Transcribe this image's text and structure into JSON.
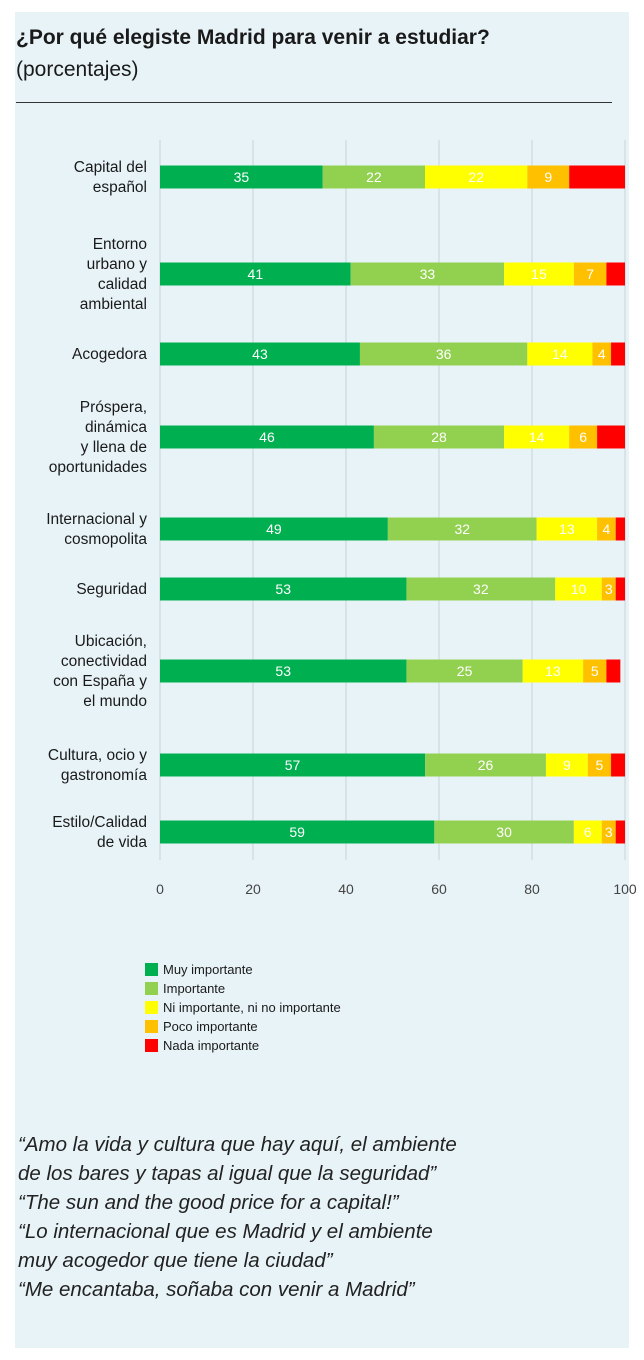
{
  "header": {
    "title": "¿Por qué elegiste Madrid para venir a estudiar?",
    "subtitle": "(porcentajes)"
  },
  "chart_data": {
    "type": "bar",
    "orientation": "horizontal",
    "stacked": true,
    "categories": [
      [
        "Capital del",
        "español"
      ],
      [
        "Entorno",
        "urbano y",
        "calidad",
        "ambiental"
      ],
      [
        "Acogedora"
      ],
      [
        "Próspera,",
        "dinámica",
        "y llena de",
        "oportunidades"
      ],
      [
        "Internacional y",
        "cosmopolita"
      ],
      [
        "Seguridad"
      ],
      [
        "Ubicación,",
        "conectividad",
        "con España y",
        "el mundo"
      ],
      [
        "Cultura, ocio y",
        "gastronomía"
      ],
      [
        "Estilo/Calidad",
        "de vida"
      ]
    ],
    "series": [
      {
        "name": "Muy importante",
        "color": "#00b050",
        "label_color": "#ffffff",
        "values": [
          35,
          41,
          43,
          46,
          49,
          53,
          53,
          57,
          59
        ]
      },
      {
        "name": "Importante",
        "color": "#92d050",
        "label_color": "#ffffff",
        "values": [
          22,
          33,
          36,
          28,
          32,
          32,
          25,
          26,
          30
        ]
      },
      {
        "name": "Ni importante, ni no importante",
        "color": "#ffff00",
        "label_color": "#ffffff",
        "values": [
          22,
          15,
          14,
          14,
          13,
          10,
          13,
          9,
          6
        ]
      },
      {
        "name": "Poco importante",
        "color": "#ffc000",
        "label_color": "#ffffff",
        "values": [
          9,
          7,
          4,
          6,
          4,
          3,
          5,
          5,
          3
        ]
      },
      {
        "name": "Nada importante",
        "color": "#ff0000",
        "label_color": "#ffffff",
        "values": [
          13,
          5,
          3,
          6,
          2,
          2,
          3,
          4,
          2
        ]
      }
    ],
    "shown_labels": [
      [
        true,
        true,
        true,
        true,
        false
      ],
      [
        true,
        true,
        true,
        true,
        false
      ],
      [
        true,
        true,
        true,
        true,
        false
      ],
      [
        true,
        true,
        true,
        true,
        false
      ],
      [
        true,
        true,
        true,
        true,
        false
      ],
      [
        true,
        true,
        true,
        true,
        false
      ],
      [
        true,
        true,
        true,
        true,
        false
      ],
      [
        true,
        true,
        true,
        true,
        false
      ],
      [
        true,
        true,
        true,
        true,
        false
      ]
    ],
    "xlim": [
      0,
      100
    ],
    "xticks": [
      "0",
      "20",
      "40",
      "60",
      "80",
      "100"
    ],
    "grid": true,
    "legend_position": "bottom-left"
  },
  "quotes": [
    "“Amo la vida y cultura que hay aquí, el ambiente",
    "de los bares y tapas al igual que la seguridad”",
    "“The sun and the good price for a capital!”",
    "“Lo internacional que es Madrid y el ambiente",
    "muy acogedor que tiene la ciudad”",
    "“Me encantaba, soñaba con venir a Madrid”"
  ]
}
